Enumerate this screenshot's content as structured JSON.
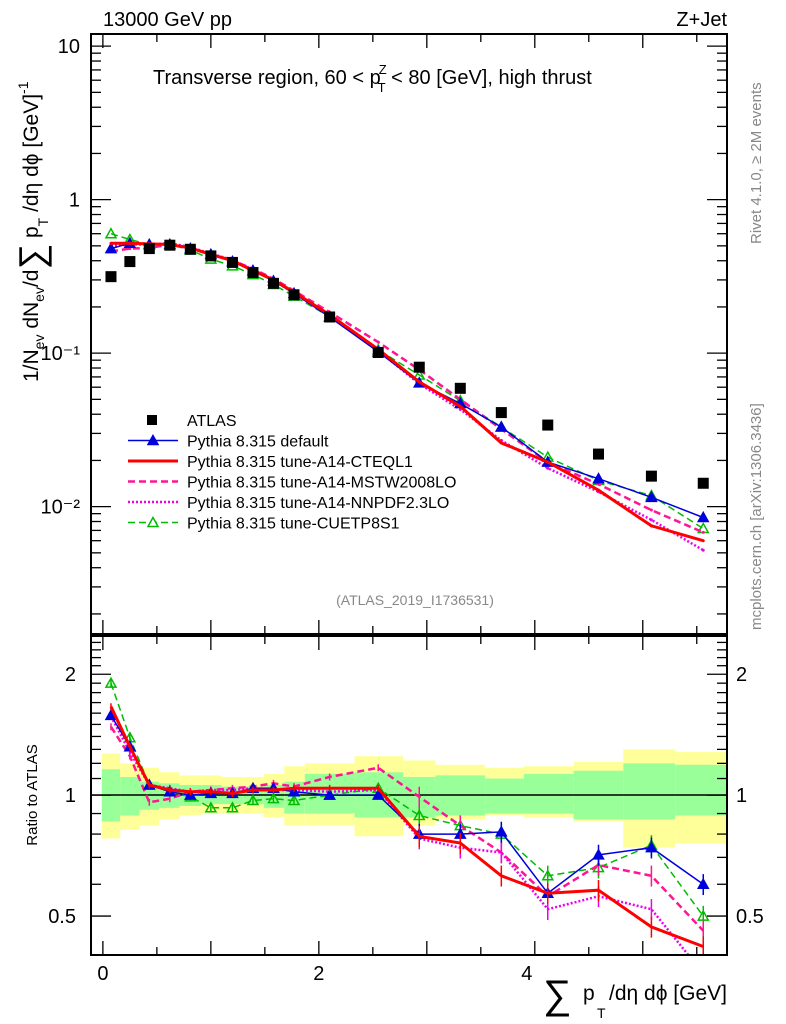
{
  "header": {
    "left": "13000 GeV pp",
    "right": "Z+Jet"
  },
  "side_labels": {
    "rivet": "Rivet 4.1.0, ≥ 2M events",
    "mcplots": "mcplots.cern.ch [arXiv:1306.3436]"
  },
  "chart_data": [
    {
      "type": "scatter",
      "panel": "main",
      "title": "Transverse region, 60 < p_T^Z < 80 [GeV], high thrust",
      "title_parts": {
        "pre": "Transverse region, 60 < p",
        "sup": "Z",
        "sub": "T",
        "post": " < 80 [GeV], high thrust"
      },
      "xlabel": "∑ p_T /dη dφ [GeV]",
      "ylabel": "1/N_ev dN_ev/d∑ p_T /dη dφ [GeV]^-1",
      "yscale": "log",
      "ylim": [
        0.00148,
        12
      ],
      "xlim": [
        -0.11,
        5.78
      ],
      "yticks": [
        {
          "value": 10,
          "label": "10"
        },
        {
          "value": 1,
          "label": "1"
        },
        {
          "value": 0.1,
          "label": "10⁻¹"
        },
        {
          "value": 0.01,
          "label": "10⁻²"
        }
      ],
      "watermark": "(ATLAS_2019_I1736531)",
      "x": [
        0.075,
        0.25,
        0.43,
        0.62,
        0.81,
        1.0,
        1.2,
        1.39,
        1.58,
        1.77,
        2.1,
        2.55,
        2.93,
        3.31,
        3.69,
        4.12,
        4.59,
        5.08,
        5.56
      ],
      "series": [
        {
          "name": "ATLAS",
          "color": "#000000",
          "marker": "square",
          "line": "none",
          "values": [
            0.315,
            0.395,
            0.48,
            0.505,
            0.475,
            0.43,
            0.39,
            0.335,
            0.285,
            0.24,
            0.172,
            0.101,
            0.081,
            0.059,
            0.041,
            0.034,
            0.022,
            0.0158,
            0.0142
          ]
        },
        {
          "name": "Pythia 8.315 default",
          "color": "#0000dd",
          "marker": "triangle-filled",
          "line": "solid",
          "values": [
            0.48,
            0.52,
            0.51,
            0.51,
            0.48,
            0.44,
            0.395,
            0.345,
            0.295,
            0.245,
            0.172,
            0.102,
            0.064,
            0.047,
            0.033,
            0.0195,
            0.0152,
            0.0115,
            0.0085
          ]
        },
        {
          "name": "Pythia 8.315 tune-A14-CTEQL1",
          "color": "#ff0000",
          "marker": "none",
          "line": "solid-thick",
          "values": [
            0.52,
            0.52,
            0.515,
            0.51,
            0.485,
            0.44,
            0.4,
            0.345,
            0.3,
            0.25,
            0.178,
            0.106,
            0.065,
            0.045,
            0.026,
            0.0195,
            0.0128,
            0.0075,
            0.006
          ]
        },
        {
          "name": "Pythia 8.315 tune-A14-MSTW2008LO",
          "color": "#ff1493",
          "marker": "none",
          "line": "dashed",
          "values": [
            0.46,
            0.48,
            0.485,
            0.51,
            0.48,
            0.44,
            0.4,
            0.355,
            0.305,
            0.255,
            0.185,
            0.118,
            0.078,
            0.05,
            0.032,
            0.0195,
            0.014,
            0.0095,
            0.0068
          ]
        },
        {
          "name": "Pythia 8.315 tune-A14-NNPDF2.3LO",
          "color": "#ee00ee",
          "marker": "none",
          "line": "dotted",
          "values": [
            0.5,
            0.51,
            0.51,
            0.52,
            0.49,
            0.445,
            0.405,
            0.35,
            0.3,
            0.245,
            0.175,
            0.104,
            0.063,
            0.043,
            0.027,
            0.0178,
            0.0125,
            0.0082,
            0.0052
          ]
        },
        {
          "name": "Pythia 8.315 tune-CUETP8S1",
          "color": "#00bb00",
          "marker": "triangle-open",
          "line": "dashed",
          "values": [
            0.6,
            0.55,
            0.51,
            0.51,
            0.47,
            0.41,
            0.37,
            0.325,
            0.28,
            0.235,
            0.173,
            0.105,
            0.072,
            0.049,
            0.033,
            0.021,
            0.0148,
            0.0118,
            0.0072
          ]
        }
      ],
      "legend": {
        "placement": "center-left"
      }
    },
    {
      "type": "line",
      "panel": "ratio",
      "ylabel": "Ratio to ATLAS",
      "yscale": "log",
      "ylim": [
        0.4,
        2.49
      ],
      "yticks": [
        {
          "value": 2,
          "label": "2"
        },
        {
          "value": 1,
          "label": "1"
        },
        {
          "value": 0.5,
          "label": "0.5"
        }
      ],
      "xticks": [
        {
          "value": 0,
          "label": "0"
        },
        {
          "value": 2,
          "label": "2"
        },
        {
          "value": 4,
          "label": "4"
        }
      ],
      "bin_edges": [
        -0.01,
        0.16,
        0.34,
        0.52,
        0.71,
        0.91,
        1.1,
        1.3,
        1.49,
        1.68,
        1.87,
        2.33,
        2.78,
        3.08,
        3.54,
        3.9,
        4.36,
        4.82,
        5.3,
        5.78
      ],
      "band_green": [
        [
          0.86,
          1.16
        ],
        [
          0.89,
          1.11
        ],
        [
          0.92,
          1.08
        ],
        [
          0.93,
          1.07
        ],
        [
          0.94,
          1.06
        ],
        [
          0.95,
          1.06
        ],
        [
          0.95,
          1.05
        ],
        [
          0.95,
          1.05
        ],
        [
          0.93,
          1.06
        ],
        [
          0.9,
          1.08
        ],
        [
          0.9,
          1.13
        ],
        [
          0.88,
          1.14
        ],
        [
          0.88,
          1.11
        ],
        [
          0.89,
          1.12
        ],
        [
          0.9,
          1.1
        ],
        [
          0.9,
          1.13
        ],
        [
          0.87,
          1.15
        ],
        [
          0.87,
          1.2
        ],
        [
          0.89,
          1.19
        ]
      ],
      "band_yellow": [
        [
          0.78,
          1.27
        ],
        [
          0.82,
          1.2
        ],
        [
          0.84,
          1.17
        ],
        [
          0.87,
          1.14
        ],
        [
          0.89,
          1.12
        ],
        [
          0.9,
          1.12
        ],
        [
          0.9,
          1.11
        ],
        [
          0.9,
          1.11
        ],
        [
          0.88,
          1.13
        ],
        [
          0.84,
          1.18
        ],
        [
          0.84,
          1.2
        ],
        [
          0.79,
          1.25
        ],
        [
          0.84,
          1.22
        ],
        [
          0.87,
          1.19
        ],
        [
          0.89,
          1.17
        ],
        [
          0.88,
          1.18
        ],
        [
          0.86,
          1.21
        ],
        [
          0.74,
          1.3
        ],
        [
          0.76,
          1.28
        ]
      ],
      "x": [
        0.075,
        0.25,
        0.43,
        0.62,
        0.81,
        1.0,
        1.2,
        1.39,
        1.58,
        1.77,
        2.1,
        2.55,
        2.93,
        3.31,
        3.69,
        4.12,
        4.59,
        5.08,
        5.56
      ],
      "series": [
        {
          "name": "Pythia 8.315 default",
          "color": "#0000dd",
          "values": [
            1.58,
            1.32,
            1.06,
            1.02,
            1.0,
            1.01,
            1.01,
            1.04,
            1.04,
            1.02,
            1.0,
            1.0,
            0.8,
            0.8,
            0.81,
            0.57,
            0.71,
            0.74,
            0.6
          ]
        },
        {
          "name": "Pythia 8.315 tune-A14-CTEQL1",
          "color": "#ff0000",
          "values": [
            1.66,
            1.32,
            1.06,
            1.03,
            1.02,
            1.02,
            1.01,
            1.03,
            1.03,
            1.04,
            1.04,
            1.04,
            0.79,
            0.76,
            0.63,
            0.57,
            0.58,
            0.47,
            0.42
          ]
        },
        {
          "name": "Pythia 8.315 tune-A14-MSTW2008LO",
          "color": "#ff1493",
          "values": [
            1.48,
            1.25,
            0.96,
            0.98,
            1.02,
            1.03,
            1.04,
            1.05,
            1.07,
            1.05,
            1.11,
            1.17,
            0.99,
            0.84,
            0.72,
            0.56,
            0.67,
            0.63,
            0.46
          ]
        },
        {
          "name": "Pythia 8.315 tune-A14-NNPDF2.3LO",
          "color": "#ee00ee",
          "values": [
            1.57,
            1.28,
            1.06,
            1.04,
            1.02,
            1.03,
            1.03,
            1.04,
            1.03,
            1.03,
            1.02,
            1.03,
            0.78,
            0.74,
            0.72,
            0.52,
            0.56,
            0.52,
            0.36
          ]
        },
        {
          "name": "Pythia 8.315 tune-CUETP8S1",
          "color": "#00bb00",
          "values": [
            1.9,
            1.39,
            1.06,
            1.02,
            0.99,
            0.93,
            0.93,
            0.97,
            0.98,
            0.97,
            1.0,
            1.04,
            0.89,
            0.84,
            0.8,
            0.63,
            0.66,
            0.75,
            0.5
          ]
        }
      ]
    }
  ]
}
